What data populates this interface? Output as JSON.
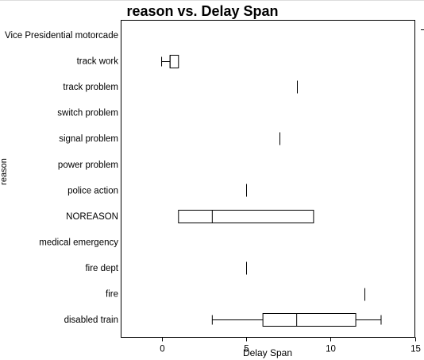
{
  "chart_data": {
    "type": "boxplot",
    "title": "reason vs. Delay Span",
    "xlabel": "Delay Span",
    "ylabel": "reason",
    "xlim": [
      -2.4,
      15
    ],
    "xticks": [
      0,
      5,
      10,
      15
    ],
    "xtick_labels": [
      "0",
      "5",
      "10",
      "15"
    ],
    "orientation": "horizontal",
    "grid": false,
    "legend": "none",
    "categories": [
      "Vice Presidential motorcade",
      "track work",
      "track problem",
      "switch problem",
      "signal problem",
      "power problem",
      "police action",
      "NOREASON",
      "medical emergency",
      "fire dept",
      "fire",
      "disabled train"
    ],
    "boxes": [
      {
        "category": "Vice Presidential motorcade",
        "stats": null
      },
      {
        "category": "track work",
        "stats": {
          "min": 0,
          "q1": 0.5,
          "median": 0.5,
          "q3": 1,
          "max": 1
        }
      },
      {
        "category": "track problem",
        "stats": {
          "min": 8,
          "q1": 8,
          "median": 8,
          "q3": 8,
          "max": 8
        }
      },
      {
        "category": "switch problem",
        "stats": null
      },
      {
        "category": "signal problem",
        "stats": {
          "min": 7,
          "q1": 7,
          "median": 7,
          "q3": 7,
          "max": 7
        }
      },
      {
        "category": "power problem",
        "stats": null
      },
      {
        "category": "police action",
        "stats": {
          "min": 5,
          "q1": 5,
          "median": 5,
          "q3": 5,
          "max": 5
        }
      },
      {
        "category": "NOREASON",
        "stats": {
          "min": 1,
          "q1": 1,
          "median": 3,
          "q3": 9,
          "max": 9
        }
      },
      {
        "category": "medical emergency",
        "stats": null
      },
      {
        "category": "fire dept",
        "stats": {
          "min": 5,
          "q1": 5,
          "median": 5,
          "q3": 5,
          "max": 5
        }
      },
      {
        "category": "fire",
        "stats": {
          "min": 12,
          "q1": 12,
          "median": 12,
          "q3": 12,
          "max": 12
        }
      },
      {
        "category": "disabled train",
        "stats": {
          "min": 3,
          "q1": 6,
          "median": 8,
          "q3": 11.5,
          "max": 13
        }
      }
    ]
  }
}
